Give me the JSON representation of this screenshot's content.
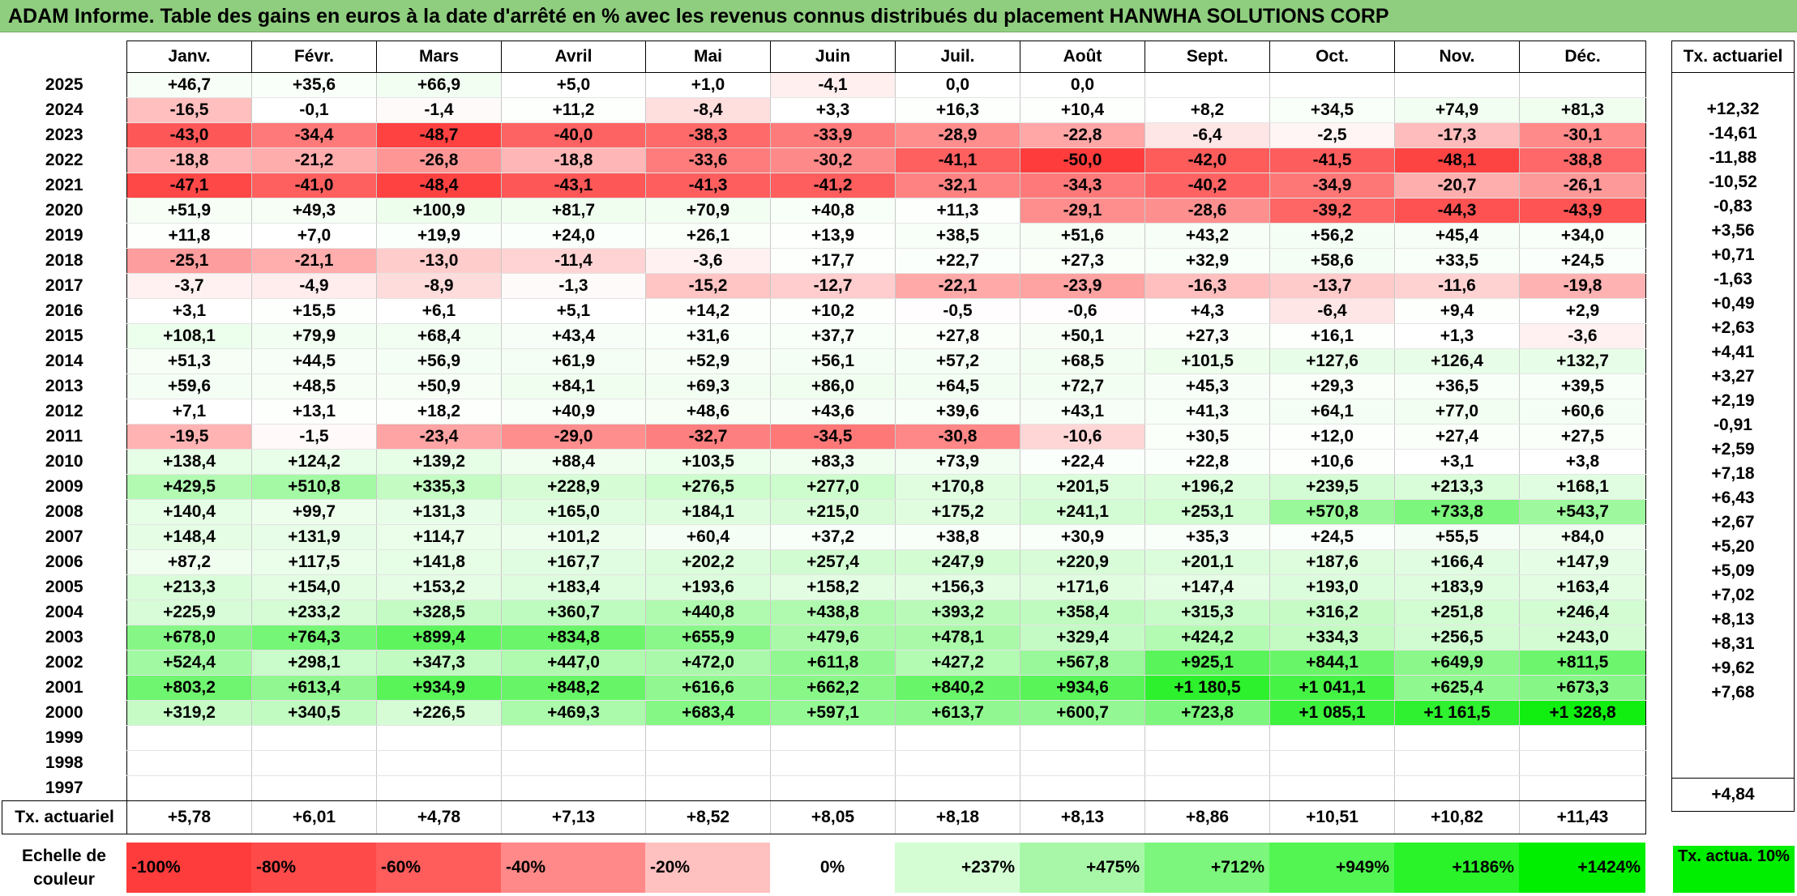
{
  "title": "ADAM Informe. Table des gains en euros à la date d'arrêté en % avec les revenus connus distribués du placement HANWHA SOLUTIONS CORP",
  "chart_data": {
    "type": "heatmap",
    "title": "ADAM Informe. Table des gains en euros à la date d'arrêté en % avec les revenus connus distribués du placement HANWHA SOLUTIONS CORP",
    "columns": [
      "Janv.",
      "Févr.",
      "Mars",
      "Avril",
      "Mai",
      "Juin",
      "Juil.",
      "Août",
      "Sept.",
      "Oct.",
      "Nov.",
      "Déc."
    ],
    "actuarial_header": "Tx. actuariel",
    "rows": [
      {
        "year": "2025",
        "values": [
          "+46,7",
          "+35,6",
          "+66,9",
          "+5,0",
          "+1,0",
          "-4,1",
          "0,0",
          "0,0",
          "",
          "",
          "",
          ""
        ],
        "actuarial": ""
      },
      {
        "year": "2024",
        "values": [
          "-16,5",
          "-0,1",
          "-1,4",
          "+11,2",
          "-8,4",
          "+3,3",
          "+16,3",
          "+10,4",
          "+8,2",
          "+34,5",
          "+74,9",
          "+81,3"
        ],
        "actuarial": "+12,32"
      },
      {
        "year": "2023",
        "values": [
          "-43,0",
          "-34,4",
          "-48,7",
          "-40,0",
          "-38,3",
          "-33,9",
          "-28,9",
          "-22,8",
          "-6,4",
          "-2,5",
          "-17,3",
          "-30,1"
        ],
        "actuarial": "-14,61"
      },
      {
        "year": "2022",
        "values": [
          "-18,8",
          "-21,2",
          "-26,8",
          "-18,8",
          "-33,6",
          "-30,2",
          "-41,1",
          "-50,0",
          "-42,0",
          "-41,5",
          "-48,1",
          "-38,8"
        ],
        "actuarial": "-11,88"
      },
      {
        "year": "2021",
        "values": [
          "-47,1",
          "-41,0",
          "-48,4",
          "-43,1",
          "-41,3",
          "-41,2",
          "-32,1",
          "-34,3",
          "-40,2",
          "-34,9",
          "-20,7",
          "-26,1"
        ],
        "actuarial": "-10,52"
      },
      {
        "year": "2020",
        "values": [
          "+51,9",
          "+49,3",
          "+100,9",
          "+81,7",
          "+70,9",
          "+40,8",
          "+11,3",
          "-29,1",
          "-28,6",
          "-39,2",
          "-44,3",
          "-43,9"
        ],
        "actuarial": "-0,83"
      },
      {
        "year": "2019",
        "values": [
          "+11,8",
          "+7,0",
          "+19,9",
          "+24,0",
          "+26,1",
          "+13,9",
          "+38,5",
          "+51,6",
          "+43,2",
          "+56,2",
          "+45,4",
          "+34,0"
        ],
        "actuarial": "+3,56"
      },
      {
        "year": "2018",
        "values": [
          "-25,1",
          "-21,1",
          "-13,0",
          "-11,4",
          "-3,6",
          "+17,7",
          "+22,7",
          "+27,3",
          "+32,9",
          "+58,6",
          "+33,5",
          "+24,5"
        ],
        "actuarial": "+0,71"
      },
      {
        "year": "2017",
        "values": [
          "-3,7",
          "-4,9",
          "-8,9",
          "-1,3",
          "-15,2",
          "-12,7",
          "-22,1",
          "-23,9",
          "-16,3",
          "-13,7",
          "-11,6",
          "-19,8"
        ],
        "actuarial": "-1,63"
      },
      {
        "year": "2016",
        "values": [
          "+3,1",
          "+15,5",
          "+6,1",
          "+5,1",
          "+14,2",
          "+10,2",
          "-0,5",
          "-0,6",
          "+4,3",
          "-6,4",
          "+9,4",
          "+2,9"
        ],
        "actuarial": "+0,49"
      },
      {
        "year": "2015",
        "values": [
          "+108,1",
          "+79,9",
          "+68,4",
          "+43,4",
          "+31,6",
          "+37,7",
          "+27,8",
          "+50,1",
          "+27,3",
          "+16,1",
          "+1,3",
          "-3,6"
        ],
        "actuarial": "+2,63"
      },
      {
        "year": "2014",
        "values": [
          "+51,3",
          "+44,5",
          "+56,9",
          "+61,9",
          "+52,9",
          "+56,1",
          "+57,2",
          "+68,5",
          "+101,5",
          "+127,6",
          "+126,4",
          "+132,7"
        ],
        "actuarial": "+4,41"
      },
      {
        "year": "2013",
        "values": [
          "+59,6",
          "+48,5",
          "+50,9",
          "+84,1",
          "+69,3",
          "+86,0",
          "+64,5",
          "+72,7",
          "+45,3",
          "+29,3",
          "+36,5",
          "+39,5"
        ],
        "actuarial": "+3,27"
      },
      {
        "year": "2012",
        "values": [
          "+7,1",
          "+13,1",
          "+18,2",
          "+40,9",
          "+48,6",
          "+43,6",
          "+39,6",
          "+43,1",
          "+41,3",
          "+64,1",
          "+77,0",
          "+60,6"
        ],
        "actuarial": "+2,19"
      },
      {
        "year": "2011",
        "values": [
          "-19,5",
          "-1,5",
          "-23,4",
          "-29,0",
          "-32,7",
          "-34,5",
          "-30,8",
          "-10,6",
          "+30,5",
          "+12,0",
          "+27,4",
          "+27,5"
        ],
        "actuarial": "-0,91"
      },
      {
        "year": "2010",
        "values": [
          "+138,4",
          "+124,2",
          "+139,2",
          "+88,4",
          "+103,5",
          "+83,3",
          "+73,9",
          "+22,4",
          "+22,8",
          "+10,6",
          "+3,1",
          "+3,8"
        ],
        "actuarial": "+2,59"
      },
      {
        "year": "2009",
        "values": [
          "+429,5",
          "+510,8",
          "+335,3",
          "+228,9",
          "+276,5",
          "+277,0",
          "+170,8",
          "+201,5",
          "+196,2",
          "+239,5",
          "+213,3",
          "+168,1"
        ],
        "actuarial": "+7,18"
      },
      {
        "year": "2008",
        "values": [
          "+140,4",
          "+99,7",
          "+131,3",
          "+165,0",
          "+184,1",
          "+215,0",
          "+175,2",
          "+241,1",
          "+253,1",
          "+570,8",
          "+733,8",
          "+543,7"
        ],
        "actuarial": "+6,43"
      },
      {
        "year": "2007",
        "values": [
          "+148,4",
          "+131,9",
          "+114,7",
          "+101,2",
          "+60,4",
          "+37,2",
          "+38,8",
          "+30,9",
          "+35,3",
          "+24,5",
          "+55,5",
          "+84,0"
        ],
        "actuarial": "+2,67"
      },
      {
        "year": "2006",
        "values": [
          "+87,2",
          "+117,5",
          "+141,8",
          "+167,7",
          "+202,2",
          "+257,4",
          "+247,9",
          "+220,9",
          "+201,1",
          "+187,6",
          "+166,4",
          "+147,9"
        ],
        "actuarial": "+5,20"
      },
      {
        "year": "2005",
        "values": [
          "+213,3",
          "+154,0",
          "+153,2",
          "+183,4",
          "+193,6",
          "+158,2",
          "+156,3",
          "+171,6",
          "+147,4",
          "+193,0",
          "+183,9",
          "+163,4"
        ],
        "actuarial": "+5,09"
      },
      {
        "year": "2004",
        "values": [
          "+225,9",
          "+233,2",
          "+328,5",
          "+360,7",
          "+440,8",
          "+438,8",
          "+393,2",
          "+358,4",
          "+315,3",
          "+316,2",
          "+251,8",
          "+246,4"
        ],
        "actuarial": "+7,02"
      },
      {
        "year": "2003",
        "values": [
          "+678,0",
          "+764,3",
          "+899,4",
          "+834,8",
          "+655,9",
          "+479,6",
          "+478,1",
          "+329,4",
          "+424,2",
          "+334,3",
          "+256,5",
          "+243,0"
        ],
        "actuarial": "+8,13"
      },
      {
        "year": "2002",
        "values": [
          "+524,4",
          "+298,1",
          "+347,3",
          "+447,0",
          "+472,0",
          "+611,8",
          "+427,2",
          "+567,8",
          "+925,1",
          "+844,1",
          "+649,9",
          "+811,5"
        ],
        "actuarial": "+8,31"
      },
      {
        "year": "2001",
        "values": [
          "+803,2",
          "+613,4",
          "+934,9",
          "+848,2",
          "+616,6",
          "+662,2",
          "+840,2",
          "+934,6",
          "+1 180,5",
          "+1 041,1",
          "+625,4",
          "+673,3"
        ],
        "actuarial": "+9,62"
      },
      {
        "year": "2000",
        "values": [
          "+319,2",
          "+340,5",
          "+226,5",
          "+469,3",
          "+683,4",
          "+597,1",
          "+613,7",
          "+600,7",
          "+723,8",
          "+1 085,1",
          "+1 161,5",
          "+1 328,8"
        ],
        "actuarial": "+7,68"
      },
      {
        "year": "1999",
        "values": [
          "",
          "",
          "",
          "",
          "",
          "",
          "",
          "",
          "",
          "",
          "",
          ""
        ],
        "actuarial": ""
      },
      {
        "year": "1998",
        "values": [
          "",
          "",
          "",
          "",
          "",
          "",
          "",
          "",
          "",
          "",
          "",
          ""
        ],
        "actuarial": ""
      },
      {
        "year": "1997",
        "values": [
          "",
          "",
          "",
          "",
          "",
          "",
          "",
          "",
          "",
          "",
          "",
          ""
        ],
        "actuarial": ""
      }
    ],
    "footer": {
      "label": "Tx. actuariel",
      "values": [
        "+5,78",
        "+6,01",
        "+4,78",
        "+7,13",
        "+8,52",
        "+8,05",
        "+8,18",
        "+8,13",
        "+8,86",
        "+10,51",
        "+10,82",
        "+11,43"
      ],
      "actuarial": "+4,84"
    },
    "scale": {
      "label": "Echelle de couleur",
      "steps": [
        {
          "label": "-100%",
          "color": "#fe3c3c",
          "align": "left"
        },
        {
          "label": "-80%",
          "color": "#ff4a4a",
          "align": "left"
        },
        {
          "label": "-60%",
          "color": "#ff5c5c",
          "align": "left"
        },
        {
          "label": "-40%",
          "color": "#ff8989",
          "align": "left"
        },
        {
          "label": "-20%",
          "color": "#ffc0c0",
          "align": "left"
        },
        {
          "label": "0%",
          "color": "#ffffff",
          "align": "center"
        },
        {
          "label": "+237%",
          "color": "#d4fdd4",
          "align": "right"
        },
        {
          "label": "+475%",
          "color": "#a8f7a8",
          "align": "right"
        },
        {
          "label": "+712%",
          "color": "#7cf67c",
          "align": "right"
        },
        {
          "label": "+949%",
          "color": "#53f553",
          "align": "right"
        },
        {
          "label": "+1186%",
          "color": "#2af32a",
          "align": "right"
        },
        {
          "label": "+1424%",
          "color": "#00ee00",
          "align": "right"
        }
      ],
      "actuarial_label": "Tx. actua. 10%",
      "actuarial_color": "#00ee00"
    },
    "color_scale": {
      "negative_color": "#fe3c3c",
      "zero_color": "#ffffff",
      "positive_color": "#00ee00",
      "positive_max": 1424
    }
  }
}
